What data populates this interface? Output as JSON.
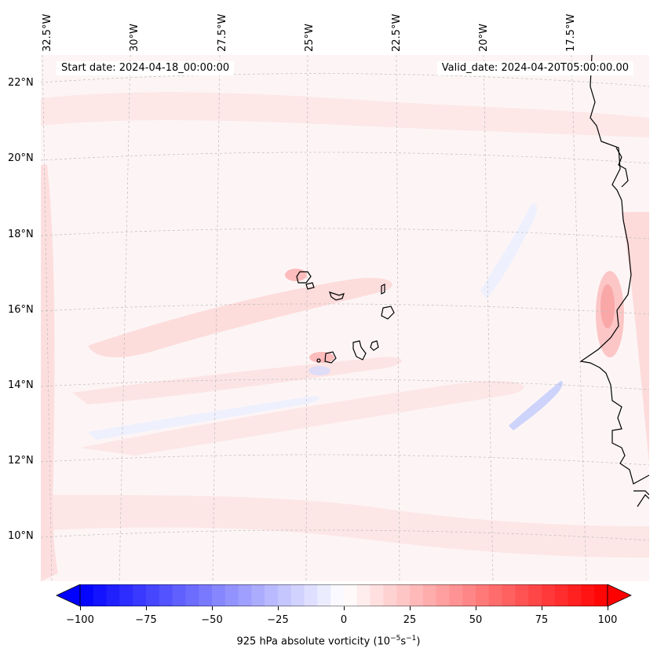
{
  "map": {
    "start_label": "Start date: 2024-04-18_00:00:00",
    "valid_label": "Valid_date: 2024-04-20T05:00:00.00",
    "lon_labels": [
      "32.5°W",
      "30°W",
      "27.5°W",
      "25°W",
      "22.5°W",
      "20°W",
      "17.5°W"
    ],
    "lat_labels": [
      "22°N",
      "20°N",
      "18°N",
      "16°N",
      "14°N",
      "12°N",
      "10°N"
    ],
    "colors": {
      "neg_max": "#0000ff",
      "zero": "#ffffff",
      "pos_max": "#ff0000",
      "coast": "#000000",
      "grid": "#bbbbbb"
    }
  },
  "colorbar": {
    "ticks": [
      "−100",
      "−75",
      "−50",
      "−25",
      "0",
      "25",
      "50",
      "75",
      "100"
    ],
    "range": [
      -100,
      100
    ],
    "levels": 40,
    "label_main": "925 hPa absolute vorticity (10",
    "label_exp1": "−5",
    "label_mid": "s",
    "label_exp2": "−1",
    "label_end": ")"
  }
}
